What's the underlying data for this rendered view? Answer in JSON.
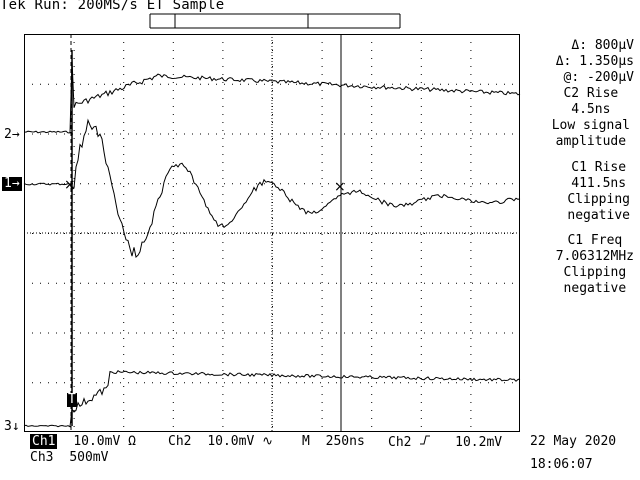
{
  "header": {
    "title": "Tek Run: 200MS/s ET Sample"
  },
  "measurements": {
    "cursor_delta_v": "Δ: 800µV",
    "cursor_delta_t": "Δ: 1.350µs",
    "cursor_at": "@: -200µV",
    "block1": [
      "C2 Rise",
      "4.5ns",
      "Low signal",
      "amplitude"
    ],
    "block2": [
      "C1 Rise",
      "411.5ns",
      "Clipping",
      "negative"
    ],
    "block3": [
      "C1 Freq",
      "7.06312MHz",
      "Clipping",
      "negative"
    ]
  },
  "channel_markers": {
    "ch2": "2",
    "ch1": "1",
    "ch3": "3",
    "trigger": "T"
  },
  "status_bar": {
    "ch1_label": "Ch1",
    "ch1_scale": "10.0mV Ω",
    "ch2_label": "Ch2",
    "ch2_scale": "10.0mV ∿",
    "timebase_label": "M",
    "timebase": "250ns",
    "trigger_source": "Ch2",
    "trigger_slope_icon": "rising-edge-icon",
    "trigger_level": "10.2mV",
    "ch3_label": "Ch3",
    "ch3_scale": "500mV",
    "date": "22 May 2020",
    "time": "18:06:07"
  },
  "colors": {
    "background": "#ffffff",
    "foreground": "#000000"
  }
}
